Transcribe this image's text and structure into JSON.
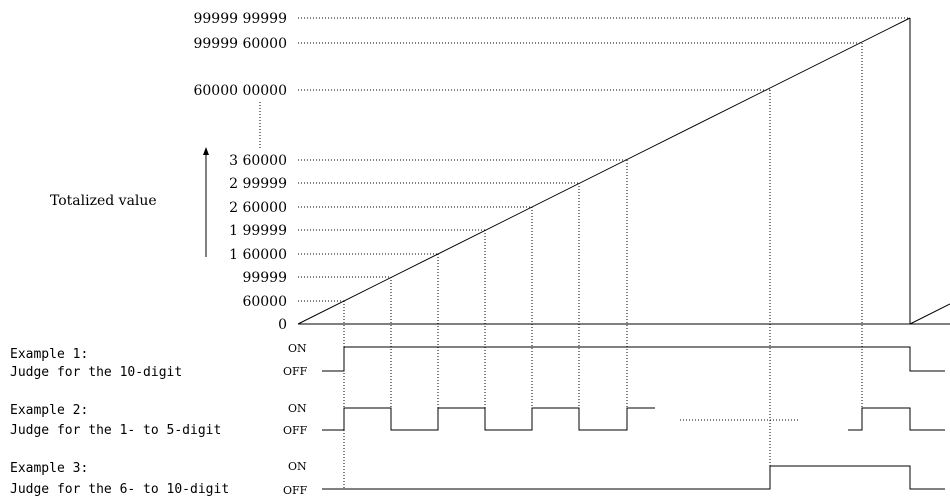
{
  "y_axis": {
    "label": "Totalized value",
    "ticks": [
      {
        "label": "99999 99999",
        "value": 9999999999
      },
      {
        "label": "99999 60000",
        "value": 9999960000
      },
      {
        "label": "60000 00000",
        "value": 6000000000
      },
      {
        "label": "3 60000",
        "value": 360000
      },
      {
        "label": "2 99999",
        "value": 299999
      },
      {
        "label": "2 60000",
        "value": 260000
      },
      {
        "label": "1 99999",
        "value": 199999
      },
      {
        "label": "1 60000",
        "value": 160000
      },
      {
        "label": "99999",
        "value": 99999
      },
      {
        "label": "60000",
        "value": 60000
      },
      {
        "label": "0",
        "value": 0
      }
    ]
  },
  "examples": [
    {
      "title": "Example 1:",
      "desc": "Judge for the 10-digit",
      "on_label": "ON",
      "off_label": "OFF"
    },
    {
      "title": "Example 2:",
      "desc": "Judge for the 1- to 5-digit",
      "on_label": "ON",
      "off_label": "OFF"
    },
    {
      "title": "Example 3:",
      "desc": "Judge for the 6- to 10-digit",
      "on_label": "ON",
      "off_label": "OFF"
    }
  ]
}
